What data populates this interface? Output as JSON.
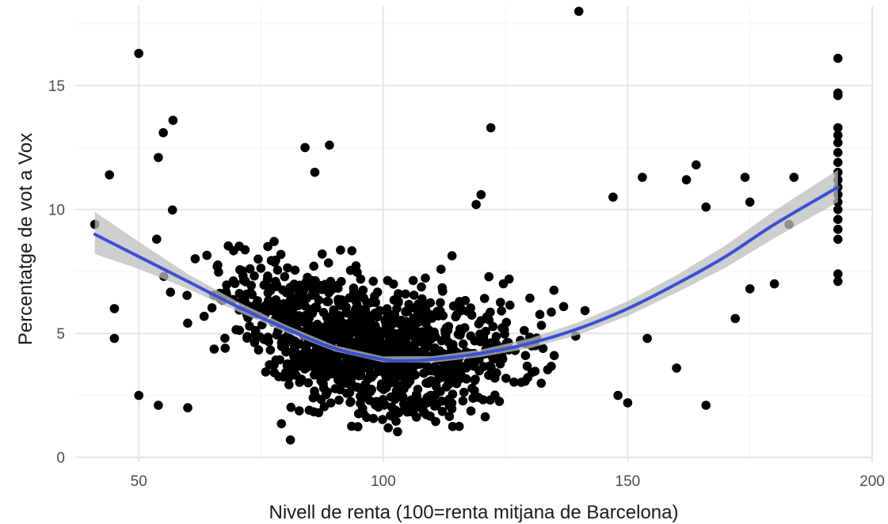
{
  "chart_data": {
    "type": "scatter",
    "xlabel": "Nivell de renta (100=renta mitjana de Barcelona)",
    "ylabel": "Percentatge de vot a Vox",
    "xlim": [
      37,
      200
    ],
    "ylim": [
      -0.2,
      18.2
    ],
    "x_ticks": [
      {
        "value": 50,
        "label": "50"
      },
      {
        "value": 100,
        "label": "100"
      },
      {
        "value": 150,
        "label": "150"
      },
      {
        "value": 200,
        "label": "200"
      }
    ],
    "y_ticks": [
      {
        "value": 0,
        "label": "0"
      },
      {
        "value": 5,
        "label": "5"
      },
      {
        "value": 10,
        "label": "10"
      },
      {
        "value": 15,
        "label": "15"
      }
    ],
    "grid": true,
    "colors": {
      "points": "#000000",
      "fit_line": "#3a4fd6",
      "confidence_band": "#bdbdbd"
    },
    "highlighted_points": [
      {
        "x": 50,
        "y": 16.3
      },
      {
        "x": 140,
        "y": 18.0
      },
      {
        "x": 122,
        "y": 13.3
      },
      {
        "x": 57,
        "y": 13.6
      },
      {
        "x": 55,
        "y": 13.1
      },
      {
        "x": 54,
        "y": 12.1
      },
      {
        "x": 84,
        "y": 12.5
      },
      {
        "x": 89,
        "y": 12.6
      },
      {
        "x": 86,
        "y": 11.5
      },
      {
        "x": 44,
        "y": 11.4
      },
      {
        "x": 81,
        "y": 0.7
      },
      {
        "x": 41,
        "y": 9.4
      },
      {
        "x": 45,
        "y": 6.0
      },
      {
        "x": 45,
        "y": 4.8
      },
      {
        "x": 50,
        "y": 2.5
      },
      {
        "x": 54,
        "y": 2.1
      },
      {
        "x": 60,
        "y": 2.0
      },
      {
        "x": 120,
        "y": 10.6
      },
      {
        "x": 119,
        "y": 10.2
      },
      {
        "x": 153,
        "y": 11.3
      },
      {
        "x": 147,
        "y": 10.5
      },
      {
        "x": 162,
        "y": 11.2
      },
      {
        "x": 164,
        "y": 11.8
      },
      {
        "x": 166,
        "y": 10.1
      },
      {
        "x": 174,
        "y": 11.3
      },
      {
        "x": 175,
        "y": 10.3
      },
      {
        "x": 183,
        "y": 9.4
      },
      {
        "x": 184,
        "y": 11.3
      },
      {
        "x": 166,
        "y": 2.1
      },
      {
        "x": 160,
        "y": 3.6
      },
      {
        "x": 150,
        "y": 2.2
      },
      {
        "x": 175,
        "y": 6.8
      },
      {
        "x": 180,
        "y": 7.0
      },
      {
        "x": 172,
        "y": 5.6
      },
      {
        "x": 154,
        "y": 4.8
      },
      {
        "x": 148,
        "y": 2.5
      }
    ],
    "vertical_stack": {
      "x": 193,
      "y_values": [
        7.1,
        7.4,
        8.8,
        9.2,
        9.6,
        10.0,
        10.3,
        10.6,
        10.9,
        11.2,
        11.5,
        11.9,
        12.3,
        12.7,
        13.0,
        13.3,
        14.6,
        14.7,
        16.1
      ]
    },
    "cloud": {
      "n": 1150,
      "seed": 17,
      "x_range": [
        47,
        150
      ],
      "center_x": 97
    },
    "smooth_curve": [
      {
        "x": 41,
        "y": 9.0
      },
      {
        "x": 50,
        "y": 8.1
      },
      {
        "x": 60,
        "y": 7.1
      },
      {
        "x": 70,
        "y": 6.1
      },
      {
        "x": 80,
        "y": 5.2
      },
      {
        "x": 90,
        "y": 4.4
      },
      {
        "x": 100,
        "y": 3.95
      },
      {
        "x": 105,
        "y": 3.9
      },
      {
        "x": 110,
        "y": 3.95
      },
      {
        "x": 120,
        "y": 4.2
      },
      {
        "x": 130,
        "y": 4.6
      },
      {
        "x": 140,
        "y": 5.2
      },
      {
        "x": 150,
        "y": 6.0
      },
      {
        "x": 160,
        "y": 7.0
      },
      {
        "x": 170,
        "y": 8.1
      },
      {
        "x": 180,
        "y": 9.4
      },
      {
        "x": 193,
        "y": 10.9
      }
    ],
    "confidence_band": [
      {
        "x": 41,
        "lo": 8.2,
        "hi": 9.9
      },
      {
        "x": 50,
        "lo": 7.6,
        "hi": 8.7
      },
      {
        "x": 60,
        "lo": 6.8,
        "hi": 7.4
      },
      {
        "x": 70,
        "lo": 5.9,
        "hi": 6.3
      },
      {
        "x": 80,
        "lo": 5.05,
        "hi": 5.35
      },
      {
        "x": 90,
        "lo": 4.28,
        "hi": 4.52
      },
      {
        "x": 100,
        "lo": 3.83,
        "hi": 4.07
      },
      {
        "x": 110,
        "lo": 3.82,
        "hi": 4.08
      },
      {
        "x": 120,
        "lo": 4.05,
        "hi": 4.35
      },
      {
        "x": 130,
        "lo": 4.4,
        "hi": 4.8
      },
      {
        "x": 140,
        "lo": 4.95,
        "hi": 5.45
      },
      {
        "x": 150,
        "lo": 5.7,
        "hi": 6.3
      },
      {
        "x": 160,
        "lo": 6.65,
        "hi": 7.35
      },
      {
        "x": 170,
        "lo": 7.65,
        "hi": 8.55
      },
      {
        "x": 180,
        "lo": 8.85,
        "hi": 9.95
      },
      {
        "x": 193,
        "lo": 10.3,
        "hi": 11.6
      }
    ]
  }
}
